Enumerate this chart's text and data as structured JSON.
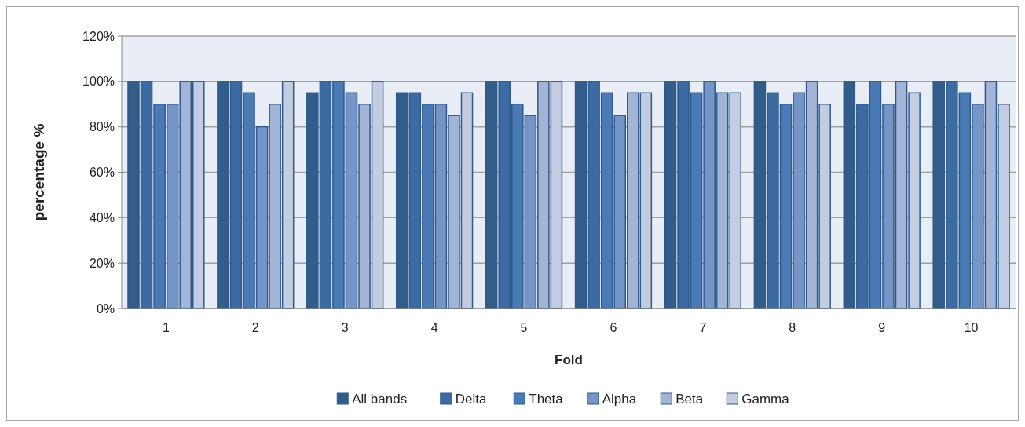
{
  "chart_data": {
    "type": "bar",
    "xlabel": "Fold",
    "ylabel": "percentage %",
    "categories": [
      "1",
      "2",
      "3",
      "4",
      "5",
      "6",
      "7",
      "8",
      "9",
      "10"
    ],
    "series": [
      {
        "name": "All bands",
        "color": "#325d8a",
        "values": [
          100,
          100,
          95,
          95,
          100,
          100,
          100,
          100,
          100,
          100
        ]
      },
      {
        "name": "Delta",
        "color": "#3c6aa2",
        "values": [
          100,
          100,
          100,
          95,
          100,
          100,
          100,
          95,
          90,
          100
        ]
      },
      {
        "name": "Theta",
        "color": "#4a7ab6",
        "values": [
          90,
          95,
          100,
          90,
          90,
          95,
          95,
          90,
          100,
          95
        ]
      },
      {
        "name": "Alpha",
        "color": "#7395c8",
        "values": [
          90,
          80,
          95,
          90,
          85,
          85,
          100,
          95,
          90,
          90
        ]
      },
      {
        "name": "Beta",
        "color": "#a2b5d6",
        "values": [
          100,
          90,
          90,
          85,
          100,
          95,
          95,
          100,
          100,
          100
        ]
      },
      {
        "name": "Gamma",
        "color": "#c3cde2",
        "values": [
          100,
          100,
          100,
          95,
          100,
          95,
          95,
          90,
          95,
          90
        ]
      }
    ],
    "ylim": [
      0,
      120
    ],
    "yticks": [
      {
        "value": 0,
        "label": "0%"
      },
      {
        "value": 20,
        "label": "20%"
      },
      {
        "value": 40,
        "label": "40%"
      },
      {
        "value": 60,
        "label": "60%"
      },
      {
        "value": 80,
        "label": "80%"
      },
      {
        "value": 100,
        "label": "100%"
      },
      {
        "value": 120,
        "label": "120%"
      }
    ],
    "grid": "y",
    "legend": "bottom"
  }
}
